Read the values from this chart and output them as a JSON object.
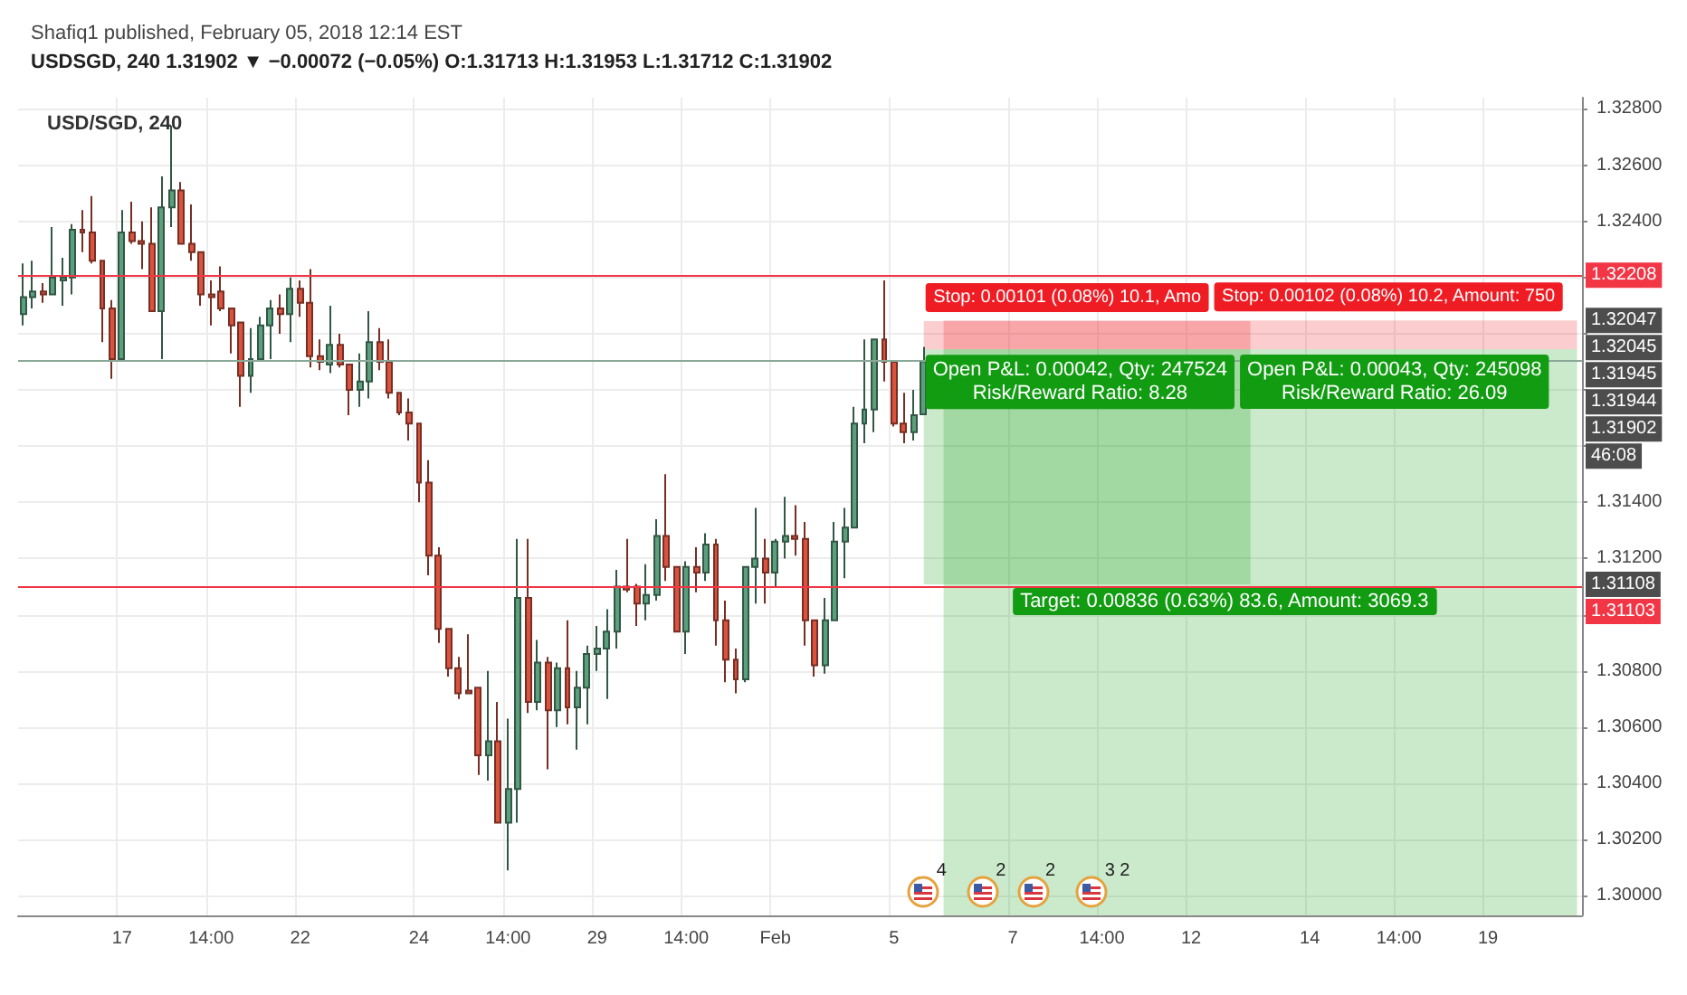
{
  "chart_data": {
    "type": "candlestick",
    "title": "Shafiq1 published, February 05, 2018 12:14 EST",
    "subtitle": "USDSGD, 240 1.31902 ▼ −0.00072 (−0.05%) O:1.31713 H:1.31953 L:1.31712 C:1.31902",
    "categories": [
      null,
      null,
      null,
      null,
      null,
      null,
      null,
      null,
      null,
      null,
      "17",
      null,
      null,
      null,
      null,
      null,
      null,
      null,
      null,
      "14:00",
      null,
      null,
      null,
      null,
      null,
      null,
      null,
      null,
      "22",
      null,
      null,
      null,
      null,
      null,
      null,
      null,
      null,
      null,
      null,
      null,
      "24",
      null,
      null,
      null,
      null,
      null,
      null,
      null,
      null,
      "14:00",
      null,
      null,
      null,
      null,
      null,
      null,
      null,
      null,
      "29",
      null,
      null,
      null,
      null,
      null,
      null,
      null,
      null,
      "14:00",
      null,
      null,
      null,
      null,
      null,
      null,
      null,
      null,
      "Feb",
      null,
      null,
      null,
      null,
      null,
      null,
      null,
      null,
      null,
      null,
      null,
      "5",
      null,
      null,
      null,
      null,
      null,
      null,
      null,
      null,
      null,
      null,
      null,
      "7",
      null,
      null,
      null,
      null,
      null,
      null,
      null,
      null,
      "14:00",
      null,
      null,
      null,
      null,
      null,
      null,
      null,
      null,
      "12",
      null,
      null,
      null,
      null,
      null,
      null,
      null,
      null,
      null,
      null,
      null,
      "14",
      null,
      null,
      null,
      null,
      null,
      null,
      null,
      null,
      "14:00",
      null,
      null,
      null,
      null,
      null,
      null,
      null,
      null,
      "19",
      null,
      null,
      null,
      null,
      null,
      null,
      null,
      null,
      null
    ],
    "series": [
      {
        "name": "USD/SGD, 240",
        "colors": [
          "#5b9f7c",
          "#5b9f7c",
          "#d9533f",
          "#5b9f7c",
          "#5b9f7c",
          "#5b9f7c",
          "#d9533f",
          "#d9533f",
          "#d9533f",
          "#d9533f",
          "#5b9f7c",
          "#d9533f",
          "#d9533f",
          "#d9533f",
          "#5b9f7c",
          "#5b9f7c",
          "#d9533f",
          "#d9533f",
          "#d9533f",
          "#d9533f",
          "#d9533f",
          "#d9533f",
          "#d9533f",
          "#5b9f7c",
          "#5b9f7c",
          "#5b9f7c",
          "#d9533f",
          "#5b9f7c",
          "#d9533f",
          "#d9533f",
          "#d9533f",
          "#5b9f7c",
          "#d9533f",
          "#d9533f",
          "#5b9f7c",
          "#5b9f7c",
          "#d9533f",
          "#d9533f",
          "#d9533f",
          "#d9533f",
          "#d9533f",
          "#d9533f",
          "#d9533f",
          "#d9533f",
          "#d9533f",
          "#d9533f",
          "#d9533f",
          "#5b9f7c",
          "#d9533f",
          "#5b9f7c",
          "#5b9f7c",
          "#d9533f",
          "#5b9f7c",
          "#d9533f",
          "#5b9f7c",
          "#d9533f",
          "#5b9f7c",
          "#5b9f7c",
          "#5b9f7c",
          "#5b9f7c",
          "#5b9f7c",
          "#d9533f",
          "#d9533f",
          "#5b9f7c",
          "#5b9f7c",
          "#d9533f",
          "#d9533f",
          "#5b9f7c",
          "#d9533f",
          "#5b9f7c",
          "#d9533f",
          "#d9533f",
          "#d9533f",
          "#5b9f7c",
          "#5b9f7c",
          "#d9533f",
          "#5b9f7c",
          "#5b9f7c",
          "#d9533f",
          "#d9533f",
          "#d9533f",
          "#5b9f7c",
          "#5b9f7c",
          "#5b9f7c",
          "#5b9f7c",
          "#5b9f7c",
          "#5b9f7c",
          "#d9533f",
          "#d9533f",
          "#d9533f",
          "#5b9f7c",
          "#5b9f7c",
          null,
          null,
          null,
          null,
          null,
          null,
          null,
          null,
          null,
          null,
          null,
          null,
          null,
          null,
          null,
          null,
          null,
          null,
          null,
          null,
          null,
          null,
          null,
          null,
          null,
          null,
          null,
          null,
          null,
          null,
          null,
          null,
          null,
          null,
          null,
          null,
          null,
          null,
          null,
          null,
          null,
          null,
          null,
          null,
          null,
          null,
          null,
          null,
          null,
          null,
          null,
          null,
          null,
          null,
          null,
          null,
          null,
          null,
          null,
          null,
          null,
          null,
          null,
          null,
          null,
          null
        ],
        "ohlc": [
          [
            1.3207,
            1.3225,
            1.3203,
            1.3213
          ],
          [
            1.3213,
            1.3226,
            1.3209,
            1.3215
          ],
          [
            1.3215,
            1.3218,
            1.3211,
            1.3214
          ],
          [
            1.3214,
            1.3238,
            1.3214,
            1.322
          ],
          [
            1.3219,
            1.3227,
            1.321,
            1.322
          ],
          [
            1.322,
            1.3239,
            1.3214,
            1.3237
          ],
          [
            1.3237,
            1.3244,
            1.3229,
            1.3236
          ],
          [
            1.3236,
            1.3249,
            1.3225,
            1.3226
          ],
          [
            1.3226,
            1.3226,
            1.3197,
            1.3209
          ],
          [
            1.3209,
            1.3212,
            1.3184,
            1.3191
          ],
          [
            1.3191,
            1.3244,
            1.3191,
            1.3236
          ],
          [
            1.3236,
            1.3247,
            1.3232,
            1.3233
          ],
          [
            1.3233,
            1.324,
            1.3223,
            1.3232
          ],
          [
            1.3232,
            1.3245,
            1.3208,
            1.3208
          ],
          [
            1.3208,
            1.3256,
            1.3191,
            1.3245
          ],
          [
            1.3245,
            1.3274,
            1.3238,
            1.3251
          ],
          [
            1.3251,
            1.3254,
            1.3232,
            1.3232
          ],
          [
            1.3232,
            1.3246,
            1.3226,
            1.3229
          ],
          [
            1.3229,
            1.3229,
            1.321,
            1.3214
          ],
          [
            1.3214,
            1.3219,
            1.3203,
            1.3213
          ],
          [
            1.3215,
            1.3224,
            1.3208,
            1.3209
          ],
          [
            1.3209,
            1.3209,
            1.3193,
            1.3203
          ],
          [
            1.3204,
            1.3204,
            1.3174,
            1.3185
          ],
          [
            1.3185,
            1.3202,
            1.3179,
            1.3191
          ],
          [
            1.3191,
            1.3206,
            1.3191,
            1.3203
          ],
          [
            1.3203,
            1.3212,
            1.3191,
            1.3209
          ],
          [
            1.3209,
            1.3214,
            1.32,
            1.3207
          ],
          [
            1.3207,
            1.322,
            1.3197,
            1.3216
          ],
          [
            1.3216,
            1.3219,
            1.3206,
            1.3211
          ],
          [
            1.3211,
            1.3223,
            1.3188,
            1.3192
          ],
          [
            1.3192,
            1.3198,
            1.3187,
            1.319
          ],
          [
            1.3189,
            1.321,
            1.3186,
            1.3196
          ],
          [
            1.3196,
            1.32,
            1.3188,
            1.3189
          ],
          [
            1.3189,
            1.3189,
            1.3171,
            1.318
          ],
          [
            1.318,
            1.3193,
            1.3174,
            1.3183
          ],
          [
            1.3183,
            1.3208,
            1.3177,
            1.3197
          ],
          [
            1.3197,
            1.3202,
            1.3187,
            1.319
          ],
          [
            1.319,
            1.3198,
            1.3177,
            1.3179
          ],
          [
            1.3179,
            1.3179,
            1.3171,
            1.3172
          ],
          [
            1.3172,
            1.3177,
            1.3162,
            1.3168
          ],
          [
            1.3168,
            1.3168,
            1.314,
            1.3147
          ],
          [
            1.3147,
            1.3155,
            1.3114,
            1.3121
          ],
          [
            1.3121,
            1.3124,
            1.309,
            1.3095
          ],
          [
            1.3095,
            1.3095,
            1.3078,
            1.3081
          ],
          [
            1.3081,
            1.3085,
            1.307,
            1.3072
          ],
          [
            1.3073,
            1.3093,
            1.3072,
            1.3072
          ],
          [
            1.3074,
            1.3074,
            1.3043,
            1.305
          ],
          [
            1.305,
            1.308,
            1.3041,
            1.3055
          ],
          [
            1.3055,
            1.3069,
            1.3026,
            1.3026
          ],
          [
            1.3026,
            1.3063,
            1.3009,
            1.3038
          ],
          [
            1.3038,
            1.3127,
            1.3026,
            1.3106
          ],
          [
            1.3106,
            1.3127,
            1.3065,
            1.3069
          ],
          [
            1.3069,
            1.3091,
            1.3066,
            1.3083
          ],
          [
            1.3083,
            1.3085,
            1.3045,
            1.3066
          ],
          [
            1.3066,
            1.3083,
            1.306,
            1.3081
          ],
          [
            1.3081,
            1.3098,
            1.3061,
            1.3067
          ],
          [
            1.3067,
            1.308,
            1.3052,
            1.3074
          ],
          [
            1.3074,
            1.3089,
            1.3061,
            1.3086
          ],
          [
            1.3086,
            1.3096,
            1.308,
            1.3088
          ],
          [
            1.3088,
            1.3102,
            1.307,
            1.3094
          ],
          [
            1.3094,
            1.3116,
            1.3088,
            1.311
          ],
          [
            1.311,
            1.3127,
            1.3108,
            1.3109
          ],
          [
            1.311,
            1.3111,
            1.3096,
            1.3104
          ],
          [
            1.3104,
            1.3118,
            1.3098,
            1.3107
          ],
          [
            1.3107,
            1.3134,
            1.3105,
            1.3128
          ],
          [
            1.3128,
            1.315,
            1.3112,
            1.3117
          ],
          [
            1.3117,
            1.3117,
            1.3094,
            1.3094
          ],
          [
            1.3094,
            1.3119,
            1.3086,
            1.3117
          ],
          [
            1.3117,
            1.3124,
            1.3108,
            1.3115
          ],
          [
            1.3115,
            1.3129,
            1.3112,
            1.3125
          ],
          [
            1.3125,
            1.3127,
            1.3089,
            1.3098
          ],
          [
            1.3098,
            1.3105,
            1.3076,
            1.3084
          ],
          [
            1.3084,
            1.3088,
            1.3072,
            1.3077
          ],
          [
            1.3077,
            1.3117,
            1.3076,
            1.3117
          ],
          [
            1.3117,
            1.3138,
            1.3104,
            1.312
          ],
          [
            1.312,
            1.3127,
            1.3104,
            1.3115
          ],
          [
            1.3115,
            1.3127,
            1.311,
            1.3126
          ],
          [
            1.3126,
            1.3142,
            1.312,
            1.3128
          ],
          [
            1.3128,
            1.3139,
            1.3121,
            1.3127
          ],
          [
            1.3127,
            1.3133,
            1.3089,
            1.3098
          ],
          [
            1.3098,
            1.3098,
            1.3078,
            1.3082
          ],
          [
            1.3082,
            1.3106,
            1.3079,
            1.3098
          ],
          [
            1.3098,
            1.3133,
            1.3098,
            1.3126
          ],
          [
            1.3126,
            1.3138,
            1.3113,
            1.3131
          ],
          [
            1.3131,
            1.3174,
            1.3131,
            1.3168
          ],
          [
            1.3168,
            1.3198,
            1.3161,
            1.3173
          ],
          [
            1.3173,
            1.3198,
            1.3165,
            1.3198
          ],
          [
            1.3198,
            1.3219,
            1.3183,
            1.319
          ],
          [
            1.319,
            1.319,
            1.3167,
            1.3168
          ],
          [
            1.3168,
            1.3179,
            1.3161,
            1.3165
          ],
          [
            1.3165,
            1.318,
            1.3162,
            1.3171
          ],
          [
            1.31713,
            1.31953,
            1.31712,
            1.31902
          ],
          null,
          null,
          null,
          null,
          null,
          null,
          null,
          null,
          null,
          null,
          null,
          null,
          null,
          null,
          null,
          null,
          null,
          null,
          null,
          null,
          null,
          null,
          null,
          null,
          null,
          null,
          null,
          null,
          null,
          null,
          null,
          null,
          null,
          null,
          null,
          null,
          null,
          null,
          null,
          null,
          null,
          null,
          null,
          null,
          null,
          null,
          null,
          null,
          null,
          null,
          null,
          null,
          null,
          null,
          null,
          null,
          null,
          null,
          null,
          null,
          null,
          null,
          null,
          null,
          null,
          null
        ]
      }
    ],
    "ylim": [
      1.2993,
      1.3284
    ],
    "yticks": [
      {
        "value": 1.3,
        "label": "1.30000"
      },
      {
        "value": 1.302,
        "label": "1.30200"
      },
      {
        "value": 1.304,
        "label": "1.30400"
      },
      {
        "value": 1.306,
        "label": "1.30600"
      },
      {
        "value": 1.308,
        "label": "1.30800"
      },
      {
        "value": 1.31,
        "label": null
      },
      {
        "value": 1.312,
        "label": "1.31200"
      },
      {
        "value": 1.314,
        "label": "1.31400"
      },
      {
        "value": 1.316,
        "label": null
      },
      {
        "value": 1.318,
        "label": null
      },
      {
        "value": 1.32,
        "label": null
      },
      {
        "value": 1.322,
        "label": null
      },
      {
        "value": 1.324,
        "label": "1.32400"
      },
      {
        "value": 1.326,
        "label": "1.32600"
      },
      {
        "value": 1.328,
        "label": "1.32800"
      }
    ],
    "ref_lines": [
      {
        "axis": "y",
        "value": 1.32208,
        "label": "1.32208",
        "color": "#f23645"
      },
      {
        "axis": "y",
        "value": 1.31902,
        "color": "#8aa898"
      },
      {
        "axis": "y",
        "value": 1.31103,
        "label": "1.31103",
        "color": "#f23645"
      }
    ],
    "bands": [
      {
        "axis": "y",
        "from": 1.31944,
        "to": 1.32045,
        "label": "Stop: 0.00101 (0.08%) 10.1, Amo",
        "color": "#f01c24"
      },
      {
        "axis": "y",
        "from": 1.31945,
        "to": 1.32047,
        "label": "Stop: 0.00102 (0.08%) 10.2, Amount: 750",
        "color": "#f01c24"
      },
      {
        "axis": "y",
        "from": 1.31108,
        "to": 1.31944,
        "label": "Open P&L: 0.00042, Qty: 247524\nRisk/Reward Ratio: 8.28",
        "color": "#129c12"
      },
      {
        "axis": "y",
        "from": 1.2993,
        "to": 1.31945,
        "label": "Open P&L: 0.00043, Qty: 245098\nRisk/Reward Ratio: 26.09",
        "color": "#129c12"
      }
    ],
    "annotations": [
      "4",
      "2",
      "2",
      "3 2",
      {
        "text": "Target: 0.00836 (0.63%) 83.6, Amount: 3069.3",
        "x": "7",
        "y": 1.31108
      },
      {
        "text": "1.32047",
        "y": 1.32047
      },
      "1.32045",
      "1.31945",
      "1.31944",
      "1.31902",
      "46:08",
      {
        "text": "1.31108",
        "y": 1.31108
      }
    ],
    "grid": true,
    "legend": "top left"
  }
}
